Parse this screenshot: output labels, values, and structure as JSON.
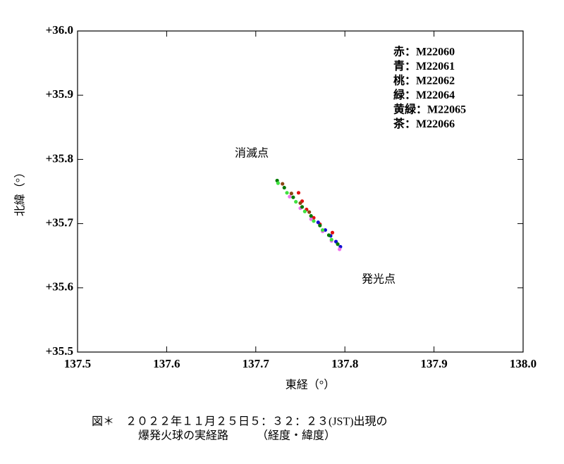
{
  "chart_data": {
    "type": "scatter",
    "x_label": "東経（°）",
    "y_label": "北緯（°）",
    "xlim": [
      137.5,
      138.0
    ],
    "ylim": [
      35.5,
      36.0
    ],
    "xticks": [
      137.5,
      137.6,
      137.7,
      137.8,
      137.9,
      {
        "value": 138.0,
        "label": "138.0"
      }
    ],
    "yticks": [
      {
        "value": 35.5,
        "label": "+35.5"
      },
      {
        "value": 35.6,
        "label": "+35.6"
      },
      {
        "value": 35.7,
        "label": "+35.7"
      },
      {
        "value": 35.8,
        "label": "+35.8"
      },
      {
        "value": 35.9,
        "label": "+35.9"
      },
      {
        "value": 36.0,
        "label": "+36.0"
      }
    ],
    "annotations": [
      "消滅点",
      "発光点"
    ],
    "caption": [
      "図＊　２０２２年１１月２５日５：３２：２３(JST)出現の",
      "爆発火球の実経路　　　（経度・緯度）"
    ],
    "series": [
      {
        "name": "赤：M22060",
        "color": "#e01010",
        "x": [
          137.748,
          137.752,
          137.757,
          137.765,
          137.772,
          137.786
        ],
        "values": [
          35.748,
          35.735,
          35.722,
          35.709,
          35.699,
          35.686
        ]
      },
      {
        "name": "青：M22061",
        "color": "#1010d0",
        "x": [
          137.77,
          137.778,
          137.784,
          137.79,
          137.795
        ],
        "values": [
          35.702,
          35.69,
          35.681,
          35.672,
          35.664
        ]
      },
      {
        "name": "桃：M22062",
        "color": "#ee70ee",
        "x": [
          137.738,
          137.75,
          137.762,
          137.775,
          137.785,
          137.794
        ],
        "values": [
          35.742,
          35.724,
          35.707,
          35.688,
          35.673,
          35.66
        ]
      },
      {
        "name": "緑：M22064",
        "color": "#007a00",
        "x": [
          137.724,
          137.732,
          137.742,
          137.752,
          137.762,
          137.772,
          137.782,
          137.792
        ],
        "values": [
          35.767,
          35.756,
          35.741,
          35.726,
          35.712,
          35.697,
          35.682,
          35.668
        ]
      },
      {
        "name": "黄緑：M22065",
        "color": "#40e040",
        "x": [
          137.725,
          137.735,
          137.745,
          137.755,
          137.765,
          137.775,
          137.785
        ],
        "values": [
          35.763,
          35.748,
          35.734,
          35.719,
          35.704,
          35.69,
          35.675
        ]
      },
      {
        "name": "茶：M22066",
        "color": "#8b4513",
        "x": [
          137.73,
          137.74,
          137.75,
          137.76
        ],
        "values": [
          35.762,
          35.747,
          35.732,
          35.718
        ]
      }
    ]
  }
}
